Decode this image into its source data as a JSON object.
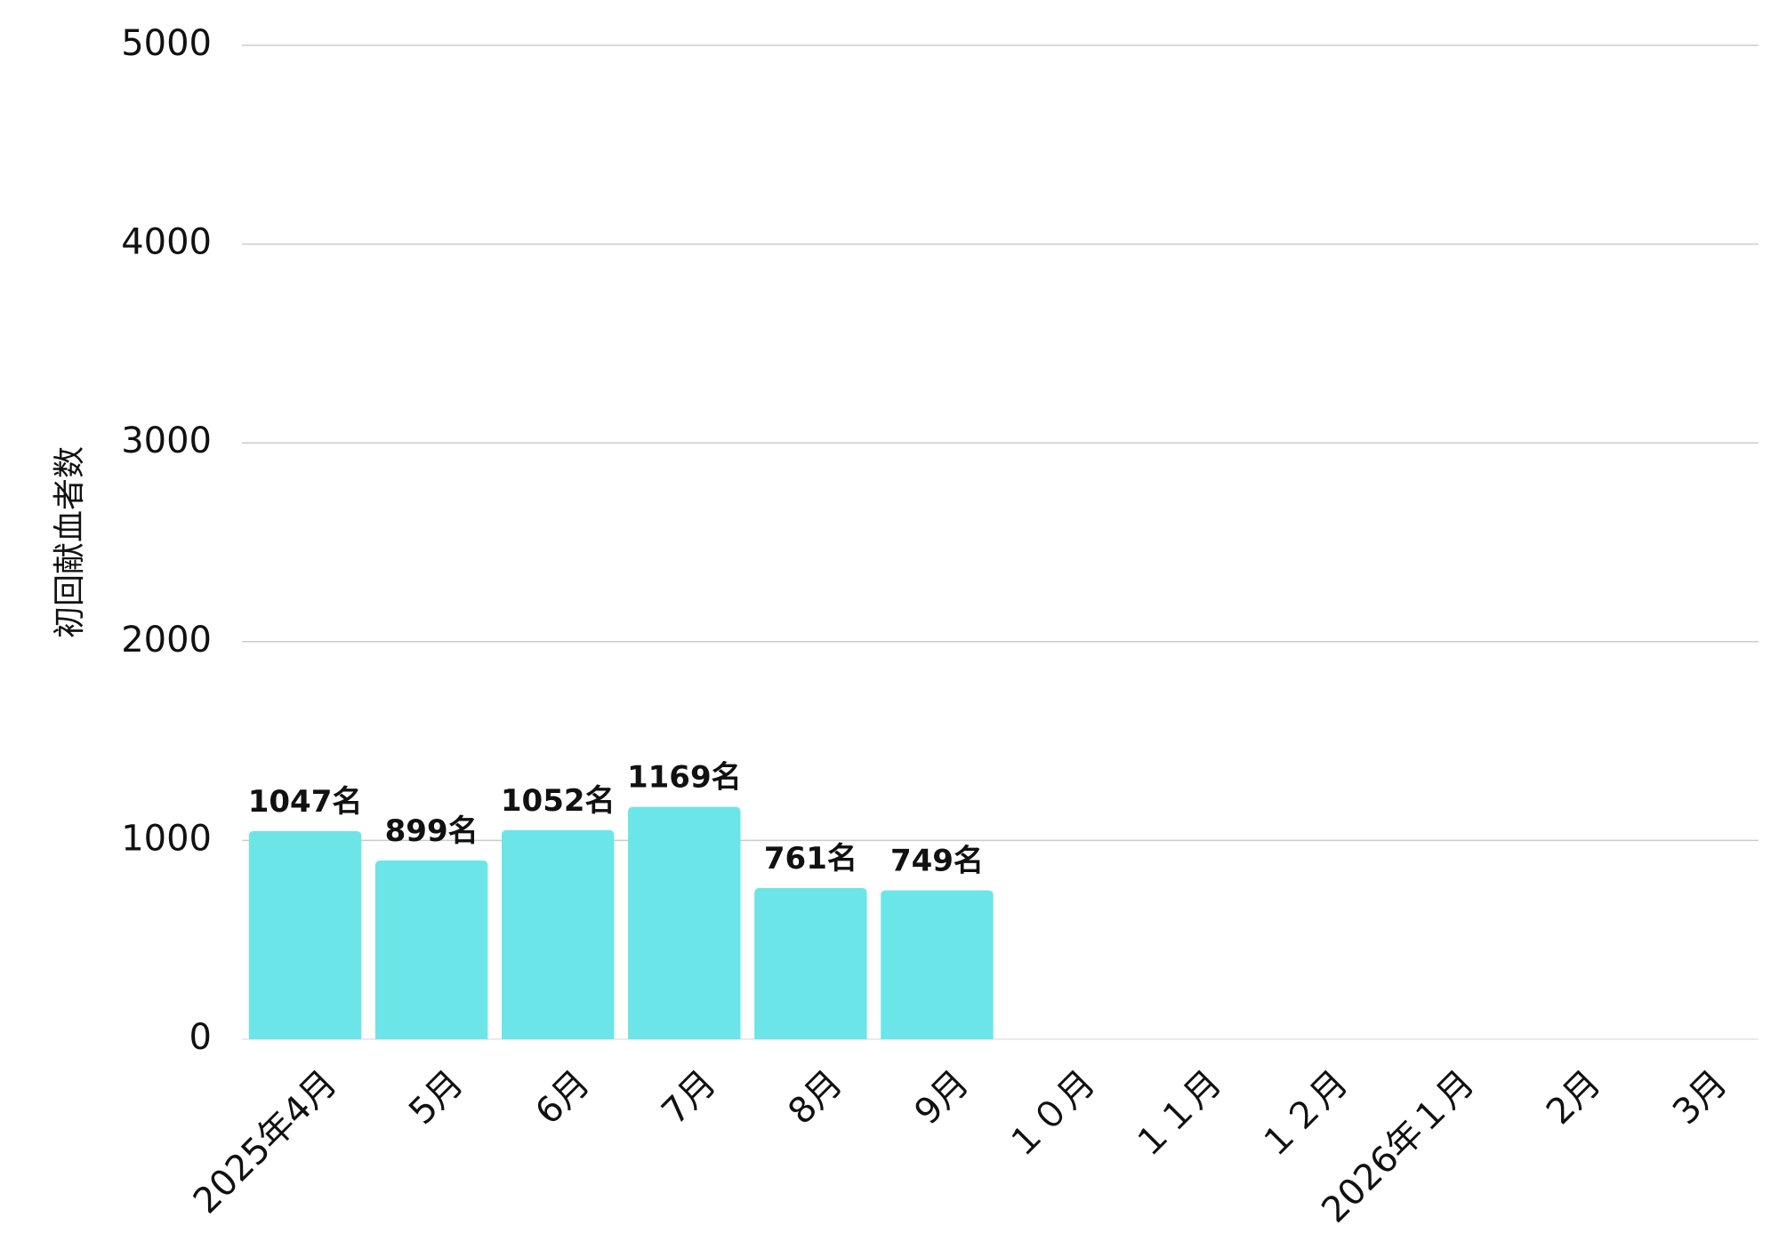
{
  "chart_data": {
    "type": "bar",
    "y_label": "初回献血者数",
    "categories": [
      "2025年4月",
      "5月",
      "6月",
      "7月",
      "8月",
      "9月",
      "１０月",
      "１１月",
      "１２月",
      "2026年１月",
      "2月",
      "3月"
    ],
    "values": [
      1047,
      899,
      1052,
      1169,
      761,
      749,
      null,
      null,
      null,
      null,
      null,
      null
    ],
    "value_labels": [
      "1047名",
      "899名",
      "1052名",
      "1169名",
      "761名",
      "749名",
      null,
      null,
      null,
      null,
      null,
      null
    ],
    "color": "#6ce5e8",
    "ylim": [
      0,
      5000
    ],
    "yticks": [
      0,
      1000,
      2000,
      3000,
      4000,
      5000
    ],
    "grid": true
  }
}
